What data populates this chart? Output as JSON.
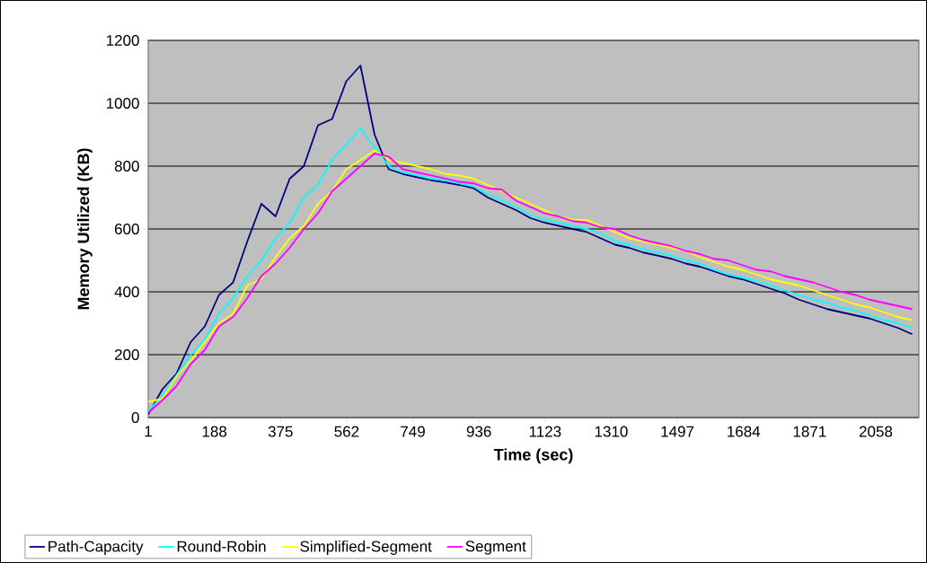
{
  "chart_data": {
    "type": "line",
    "xlabel": "Time (sec)",
    "ylabel": "Memory Utilized (KB)",
    "x": [
      1,
      41,
      81,
      121,
      161,
      201,
      241,
      281,
      321,
      361,
      401,
      441,
      481,
      521,
      561,
      601,
      641,
      681,
      721,
      761,
      801,
      841,
      881,
      921,
      961,
      1001,
      1041,
      1081,
      1121,
      1161,
      1201,
      1241,
      1281,
      1321,
      1361,
      1401,
      1441,
      1481,
      1521,
      1561,
      1601,
      1641,
      1681,
      1721,
      1761,
      1801,
      1841,
      1881,
      1921,
      1961,
      2001,
      2041,
      2081,
      2121,
      2161
    ],
    "xlim": [
      1,
      2180
    ],
    "xticks": [
      1,
      188,
      375,
      562,
      749,
      936,
      1123,
      1310,
      1497,
      1684,
      1871,
      2058
    ],
    "ylim": [
      0,
      1200
    ],
    "yticks": [
      0,
      200,
      400,
      600,
      800,
      1000,
      1200
    ],
    "grid": "y",
    "legend": "bottom",
    "marker": "none",
    "line_style": "solid",
    "series": [
      {
        "name": "Path-Capacity",
        "color": "#000080",
        "values": [
          10,
          90,
          140,
          240,
          290,
          390,
          430,
          560,
          680,
          640,
          760,
          800,
          930,
          950,
          1070,
          1120,
          900,
          790,
          775,
          765,
          755,
          748,
          740,
          730,
          700,
          680,
          660,
          635,
          620,
          610,
          600,
          590,
          570,
          550,
          540,
          525,
          515,
          505,
          490,
          480,
          465,
          450,
          440,
          425,
          410,
          395,
          375,
          360,
          345,
          335,
          325,
          315,
          300,
          285,
          265
        ]
      },
      {
        "name": "Round-Robin",
        "color": "#00ffff",
        "values": [
          20,
          70,
          135,
          200,
          250,
          330,
          380,
          450,
          500,
          570,
          620,
          700,
          740,
          820,
          870,
          920,
          860,
          800,
          780,
          770,
          760,
          755,
          745,
          735,
          710,
          690,
          670,
          645,
          630,
          620,
          610,
          600,
          585,
          560,
          550,
          535,
          525,
          515,
          500,
          490,
          470,
          455,
          445,
          435,
          420,
          405,
          390,
          375,
          365,
          350,
          340,
          325,
          310,
          300,
          285
        ]
      },
      {
        "name": "Simplified-Segment",
        "color": "#ffff00",
        "values": [
          50,
          60,
          130,
          180,
          240,
          300,
          330,
          420,
          440,
          510,
          570,
          610,
          680,
          720,
          790,
          820,
          850,
          820,
          810,
          800,
          790,
          775,
          770,
          760,
          740,
          720,
          700,
          680,
          660,
          640,
          630,
          628,
          610,
          590,
          570,
          560,
          550,
          540,
          530,
          510,
          495,
          480,
          470,
          455,
          440,
          430,
          420,
          405,
          390,
          375,
          360,
          350,
          335,
          320,
          310
        ]
      },
      {
        "name": "Segment",
        "color": "#ff00ff",
        "values": [
          15,
          55,
          100,
          170,
          215,
          290,
          320,
          380,
          450,
          490,
          540,
          600,
          650,
          720,
          760,
          800,
          840,
          830,
          790,
          780,
          770,
          760,
          750,
          745,
          730,
          725,
          690,
          670,
          650,
          640,
          625,
          620,
          605,
          600,
          580,
          565,
          555,
          545,
          530,
          520,
          505,
          500,
          485,
          470,
          465,
          450,
          440,
          430,
          415,
          400,
          390,
          375,
          365,
          355,
          345
        ]
      }
    ]
  }
}
